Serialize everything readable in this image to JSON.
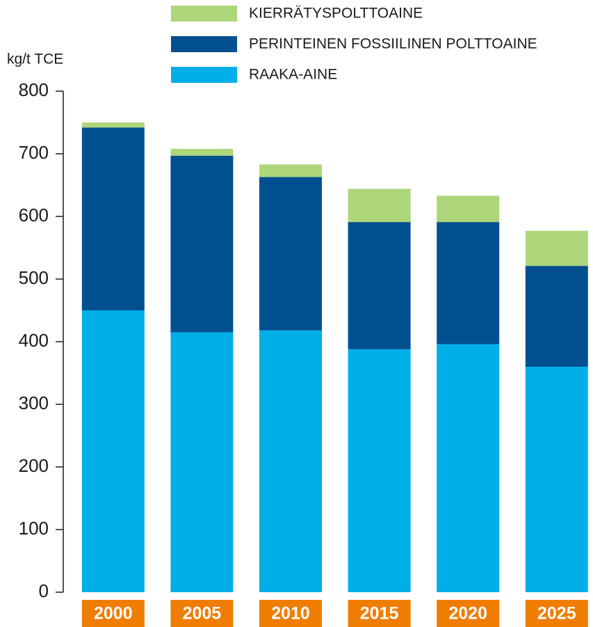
{
  "chart_data": {
    "type": "stacked_bar",
    "y_label": "kg/t TCE",
    "categories": [
      "2000",
      "2005",
      "2010",
      "2015",
      "2020",
      "2025"
    ],
    "series": [
      {
        "name": "RAAKA-AINE",
        "color": "#00aee8",
        "values": [
          450,
          415,
          418,
          388,
          396,
          360
        ]
      },
      {
        "name": "PERINTEINEN FOSSIILINEN POLTTOAINE",
        "color": "#00508f",
        "values": [
          292,
          282,
          245,
          203,
          195,
          161
        ]
      },
      {
        "name": "KIERRÄTYSPOLTTOAINE",
        "color": "#aed67a",
        "values": [
          8,
          11,
          20,
          53,
          42,
          56
        ]
      }
    ],
    "ylim": [
      0,
      800
    ],
    "yticks": [
      0,
      100,
      200,
      300,
      400,
      500,
      600,
      700,
      800
    ],
    "category_box_color": "#ee7d00",
    "legend": "top"
  }
}
